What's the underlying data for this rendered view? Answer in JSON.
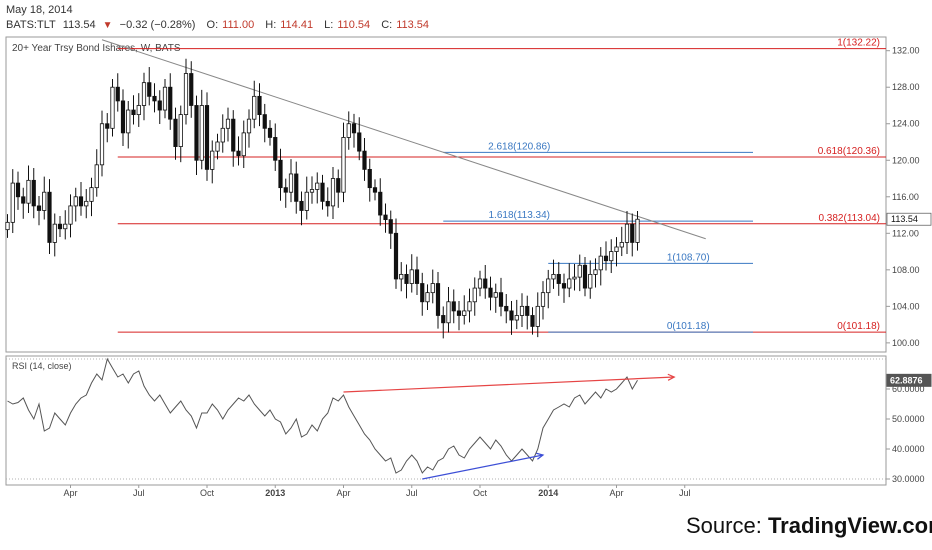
{
  "header": {
    "date": "May 18, 2014",
    "symbol": "BATS:TLT",
    "last": "113.54",
    "change": "−0.32 (−0.28%)",
    "open_label": "O:",
    "open": "111.00",
    "high_label": "H:",
    "high": "114.41",
    "low_label": "L:",
    "low": "110.54",
    "close_label": "C:",
    "close": "113.54"
  },
  "source": {
    "prefix": "Source: ",
    "name": "TradingView.com"
  },
  "colors": {
    "up": "#ffffff",
    "down": "#111111",
    "fib_red": "#d62020",
    "fib_blue": "#3a78c2",
    "trend_gray": "#888888",
    "rsi_line": "#555555",
    "rsi_up_div": "#e64545",
    "rsi_down_div": "#3d4fd6"
  },
  "chart_data": [
    {
      "type": "candlestick",
      "title": "20+ Year Trsy Bond Ishares, W, BATS",
      "ylim": [
        99,
        133.5
      ],
      "y_ticks": [
        "132.00",
        "128.00",
        "124.00",
        "120.00",
        "116.00",
        "112.00",
        "108.00",
        "104.00",
        "100.00"
      ],
      "x_ticks": [
        "Apr",
        "Jul",
        "Oct",
        "2013",
        "Apr",
        "Jul",
        "Oct",
        "2014",
        "Apr",
        "Jul"
      ],
      "x_tick_weeks": [
        12,
        25,
        38,
        51,
        64,
        77,
        90,
        103,
        116,
        129
      ],
      "last_price_label": "113.54",
      "last_price": 113.54,
      "fib_red_levels": [
        {
          "label": "1(132.22)",
          "value": 132.22
        },
        {
          "label": "0.618(120.36)",
          "value": 120.36
        },
        {
          "label": "0.382(113.04)",
          "value": 113.04
        },
        {
          "label": "0(101.18)",
          "value": 101.18
        }
      ],
      "fib_blue_levels": [
        {
          "label": "2.618(120.86)",
          "value": 120.86
        },
        {
          "label": "1.618(113.34)",
          "value": 113.34
        },
        {
          "label": "1(108.70)",
          "value": 108.7
        },
        {
          "label": "0(101.18)",
          "value": 101.18
        }
      ],
      "trendline": {
        "from_week": 18,
        "from_value": 133.2,
        "to_week": 133,
        "to_value": 111.4
      },
      "closes": [
        113.2,
        117.5,
        116.0,
        115.3,
        117.8,
        115.0,
        114.5,
        116.5,
        111.0,
        113.0,
        112.5,
        113.0,
        115.0,
        116.0,
        115.0,
        115.5,
        117.0,
        119.5,
        124.0,
        123.5,
        128.0,
        126.5,
        123.0,
        125.5,
        125.0,
        126.0,
        128.5,
        127.0,
        126.5,
        125.5,
        128.0,
        124.5,
        121.5,
        125.0,
        129.5,
        126.0,
        120.0,
        126.0,
        119.0,
        121.0,
        122.0,
        123.5,
        124.5,
        121.0,
        120.5,
        123.0,
        124.5,
        127.0,
        125.0,
        123.5,
        122.5,
        120.0,
        117.0,
        116.5,
        118.5,
        115.5,
        114.5,
        116.5,
        116.8,
        117.5,
        115.5,
        115.0,
        118.0,
        116.5,
        122.5,
        124.0,
        123.0,
        121.0,
        119.0,
        117.0,
        116.5,
        114.0,
        113.5,
        112.0,
        107.0,
        107.5,
        106.5,
        108.0,
        106.5,
        104.5,
        105.5,
        106.5,
        103.0,
        102.2,
        104.5,
        103.5,
        103.0,
        103.5,
        104.5,
        106.0,
        107.0,
        106.0,
        105.0,
        105.5,
        104.0,
        103.5,
        102.5,
        103.0,
        104.0,
        103.0,
        101.8,
        104.0,
        105.5,
        107.0,
        107.5,
        106.5,
        106.0,
        107.0,
        107.2,
        108.5,
        106.0,
        107.5,
        108.0,
        109.5,
        109.0,
        110.0,
        110.5,
        111.0,
        113.0,
        111.0,
        113.54
      ]
    },
    {
      "type": "line",
      "title": "RSI (14, close)",
      "ylim": [
        28,
        71
      ],
      "y_ticks": [
        "60.0000",
        "50.0000",
        "40.0000",
        "30.0000"
      ],
      "y_tick_values": [
        60,
        50,
        40,
        30
      ],
      "last_value_label": "62.8876",
      "last_value": 62.8876,
      "values": [
        56.0,
        55.0,
        55.5,
        57.0,
        53.0,
        50.0,
        55.0,
        46.0,
        47.0,
        52.0,
        50.0,
        48.0,
        52.0,
        55.0,
        57.0,
        58.0,
        62.0,
        65.0,
        63.0,
        70.0,
        67.0,
        64.0,
        65.0,
        62.0,
        65.0,
        66.0,
        61.0,
        58.0,
        56.0,
        58.0,
        55.0,
        52.0,
        54.0,
        56.0,
        53.0,
        51.0,
        47.0,
        52.0,
        52.0,
        55.0,
        53.0,
        50.0,
        53.0,
        55.0,
        57.0,
        56.0,
        58.0,
        55.0,
        53.0,
        51.0,
        53.0,
        50.0,
        49.0,
        45.0,
        47.0,
        50.0,
        44.0,
        45.0,
        48.0,
        46.0,
        50.0,
        52.0,
        57.0,
        56.0,
        58.0,
        54.0,
        51.0,
        48.0,
        45.0,
        43.0,
        40.0,
        38.0,
        36.0,
        37.0,
        32.0,
        33.0,
        36.0,
        38.0,
        36.0,
        32.0,
        34.0,
        33.0,
        36.0,
        37.0,
        40.0,
        41.0,
        38.0,
        37.0,
        40.0,
        42.0,
        44.0,
        42.0,
        40.0,
        43.0,
        41.0,
        38.0,
        36.0,
        38.0,
        40.0,
        38.0,
        36.0,
        40.0,
        47.0,
        50.0,
        53.0,
        54.0,
        55.0,
        54.0,
        57.0,
        58.0,
        55.0,
        57.0,
        59.0,
        57.0,
        60.0,
        59.0,
        60.0,
        62.0,
        64.0,
        60.0,
        62.9
      ],
      "divergences": [
        {
          "from_week": 64,
          "from_value": 59.0,
          "to_week": 127,
          "to_value": 64.0,
          "color_key": "rsi_up_div"
        },
        {
          "from_week": 79,
          "from_value": 30.0,
          "to_week": 102,
          "to_value": 38.0,
          "color_key": "rsi_down_div"
        }
      ]
    }
  ]
}
